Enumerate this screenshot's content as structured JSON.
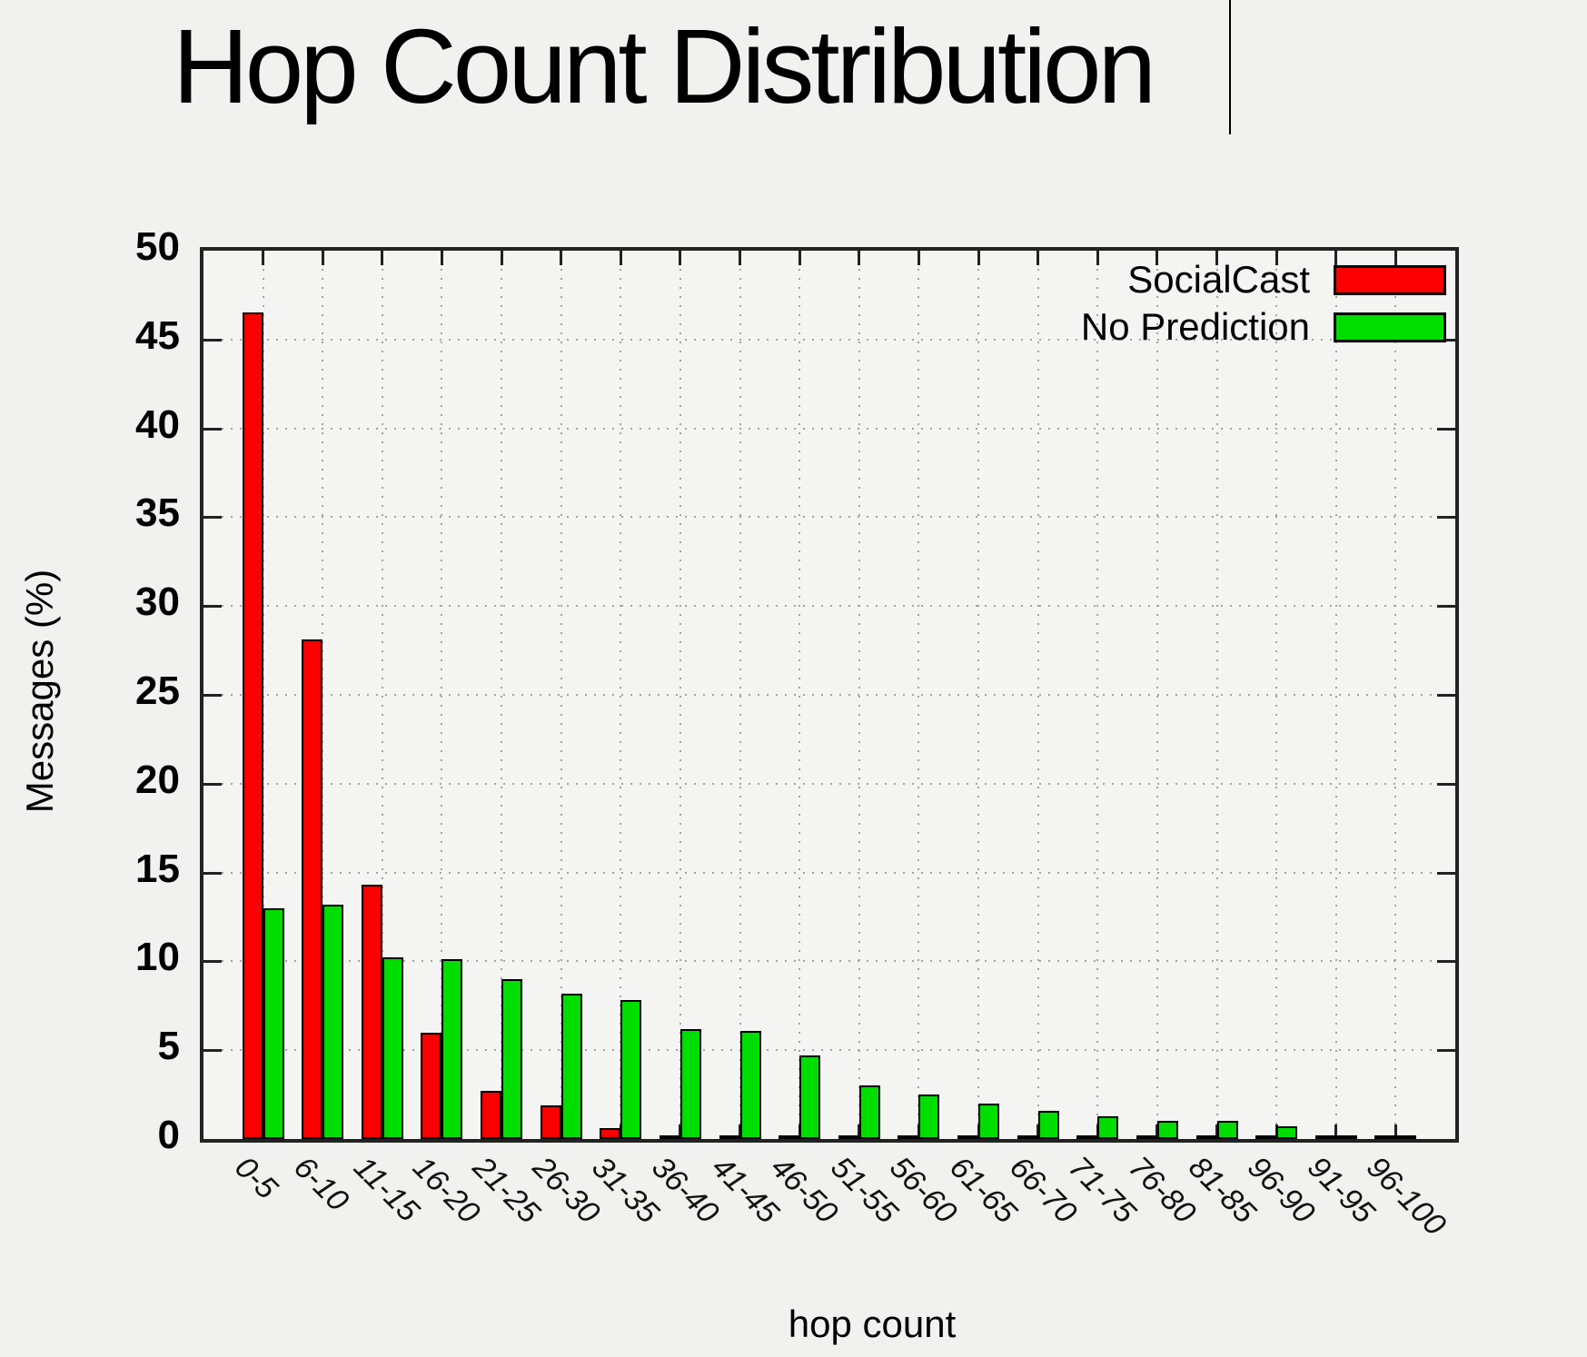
{
  "page": {
    "background": "#f1f1ef"
  },
  "title": {
    "text": "Hop Count Distribution",
    "cursor_visible": true
  },
  "chart_data": {
    "type": "bar",
    "title": "Hop Count Distribution",
    "xlabel": "hop count",
    "ylabel": "Messages (%)",
    "ylim": [
      0,
      50
    ],
    "yticks": [
      0,
      5,
      10,
      15,
      20,
      25,
      30,
      35,
      40,
      45,
      50
    ],
    "grid": true,
    "legend_position": "top-right-inside",
    "categories": [
      "0-5",
      "6-10",
      "11-15",
      "16-20",
      "21-25",
      "26-30",
      "31-35",
      "36-40",
      "41-45",
      "46-50",
      "51-55",
      "56-60",
      "61-65",
      "66-70",
      "71-75",
      "76-80",
      "81-85",
      "96-90",
      "91-95",
      "96-100"
    ],
    "series": [
      {
        "name": "SocialCast",
        "color": "#fb0000",
        "values": [
          46.5,
          28.1,
          14.3,
          6.0,
          2.7,
          1.9,
          0.6,
          0.2,
          0.2,
          0.1,
          0.05,
          0.05,
          0.05,
          0.05,
          0.05,
          0.05,
          0.05,
          0.05,
          0.05,
          0.05
        ]
      },
      {
        "name": "No Prediction",
        "color": "#00dd00",
        "values": [
          13.0,
          13.2,
          10.2,
          10.1,
          9.0,
          8.2,
          7.8,
          6.2,
          6.1,
          4.7,
          3.0,
          2.5,
          2.0,
          1.6,
          1.3,
          1.0,
          1.0,
          0.7,
          0.2,
          0.1
        ]
      }
    ]
  }
}
